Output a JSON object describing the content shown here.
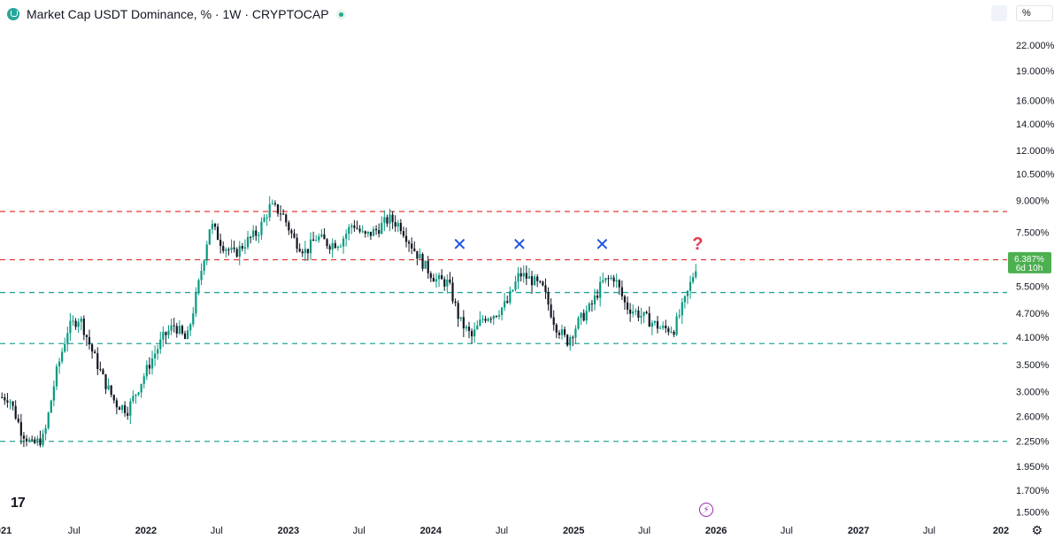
{
  "header": {
    "title": "Market Cap USDT Dominance, % · 1W · CRYPTOCAP"
  },
  "toolbar": {
    "unit_label": "%"
  },
  "icons": {
    "symbol": "tether-icon",
    "status": "market-status-icon",
    "logo": "tradingview-logo-icon",
    "flash": "lightning-icon",
    "settings": "gear-icon"
  },
  "logo_text": "17",
  "price_tag": {
    "value": "6.387%",
    "countdown": "6d 10h",
    "color": "#4caf50"
  },
  "chart_data": {
    "type": "candlestick",
    "title": "Market Cap USDT Dominance, % · 1W · CRYPTOCAP",
    "y_scale": "log",
    "y_unit": "%",
    "ylim": [
      1.45,
      24.5
    ],
    "y_ticks": [
      "22.000%",
      "19.000%",
      "16.000%",
      "14.000%",
      "12.000%",
      "10.500%",
      "9.000%",
      "7.500%",
      "6.387%",
      "5.500%",
      "4.700%",
      "4.100%",
      "3.500%",
      "3.000%",
      "2.600%",
      "2.250%",
      "1.950%",
      "1.700%",
      "1.500%"
    ],
    "x_ticks": [
      "2021",
      "Jul",
      "2022",
      "Jul",
      "2023",
      "Jul",
      "2024",
      "Jul",
      "2025",
      "Jul",
      "2026",
      "Jul",
      "2027",
      "Jul",
      "2028"
    ],
    "x_tick_display": [
      "021",
      "Jul",
      "2022",
      "Jul",
      "2023",
      "Jul",
      "2024",
      "Jul",
      "2025",
      "Jul",
      "2026",
      "Jul",
      "2027",
      "Jul",
      "202"
    ],
    "last_value": 6.387,
    "horizontal_lines": [
      {
        "value": 8.45,
        "color": "#e53935",
        "style": "dashed"
      },
      {
        "value": 6.4,
        "color": "#e53935",
        "style": "dashed"
      },
      {
        "value": 5.3,
        "color": "#26a69a",
        "style": "dashed"
      },
      {
        "value": 3.95,
        "color": "#26a69a",
        "style": "dashed"
      },
      {
        "value": 2.25,
        "color": "#26a69a",
        "style": "dashed"
      }
    ],
    "annotations": [
      {
        "text": "✕",
        "date": "2024-03",
        "value": 6.75,
        "color": "#1e53e5"
      },
      {
        "text": "✕",
        "date": "2024-08",
        "value": 6.75,
        "color": "#1e53e5"
      },
      {
        "text": "✕",
        "date": "2025-03",
        "value": 6.75,
        "color": "#1e53e5"
      },
      {
        "text": "?",
        "date": "2025-11",
        "value": 6.78,
        "color": "#e53950"
      }
    ],
    "series": [
      {
        "date_start": "2021-01",
        "date_end": "2025-11",
        "interval": "weekly",
        "approx_path": [
          [
            "2021-01",
            2.9
          ],
          [
            "2021-02",
            2.4
          ],
          [
            "2021-03",
            2.2
          ],
          [
            "2021-04",
            2.3
          ],
          [
            "2021-05",
            3.3
          ],
          [
            "2021-06",
            4.3
          ],
          [
            "2021-07",
            4.6
          ],
          [
            "2021-08",
            3.8
          ],
          [
            "2021-09",
            3.2
          ],
          [
            "2021-10",
            2.8
          ],
          [
            "2021-11",
            2.7
          ],
          [
            "2021-12",
            3.1
          ],
          [
            "2022-01",
            3.6
          ],
          [
            "2022-02",
            4.1
          ],
          [
            "2022-03",
            4.4
          ],
          [
            "2022-04",
            4.0
          ],
          [
            "2022-05",
            5.5
          ],
          [
            "2022-06",
            7.9
          ],
          [
            "2022-07",
            7.0
          ],
          [
            "2022-08",
            6.6
          ],
          [
            "2022-09",
            7.1
          ],
          [
            "2022-10",
            7.5
          ],
          [
            "2022-11",
            8.7
          ],
          [
            "2022-12",
            8.4
          ],
          [
            "2023-01",
            7.2
          ],
          [
            "2023-02",
            6.7
          ],
          [
            "2023-03",
            7.3
          ],
          [
            "2023-04",
            7.0
          ],
          [
            "2023-05",
            7.1
          ],
          [
            "2023-06",
            7.9
          ],
          [
            "2023-07",
            7.3
          ],
          [
            "2023-08",
            7.6
          ],
          [
            "2023-09",
            8.1
          ],
          [
            "2023-10",
            7.8
          ],
          [
            "2023-11",
            6.9
          ],
          [
            "2023-12",
            6.2
          ],
          [
            "2024-01",
            5.7
          ],
          [
            "2024-02",
            5.6
          ],
          [
            "2024-03",
            4.5
          ],
          [
            "2024-04",
            4.1
          ],
          [
            "2024-05",
            4.6
          ],
          [
            "2024-06",
            4.7
          ],
          [
            "2024-07",
            5.0
          ],
          [
            "2024-08",
            5.9
          ],
          [
            "2024-09",
            5.7
          ],
          [
            "2024-10",
            5.4
          ],
          [
            "2024-11",
            4.4
          ],
          [
            "2024-12",
            4.0
          ],
          [
            "2025-01",
            4.5
          ],
          [
            "2025-02",
            4.9
          ],
          [
            "2025-03",
            5.6
          ],
          [
            "2025-04",
            5.8
          ],
          [
            "2025-05",
            4.9
          ],
          [
            "2025-06",
            4.7
          ],
          [
            "2025-07",
            4.5
          ],
          [
            "2025-08",
            4.3
          ],
          [
            "2025-09",
            4.3
          ],
          [
            "2025-10",
            5.1
          ],
          [
            "2025-11",
            6.387
          ]
        ]
      }
    ]
  }
}
